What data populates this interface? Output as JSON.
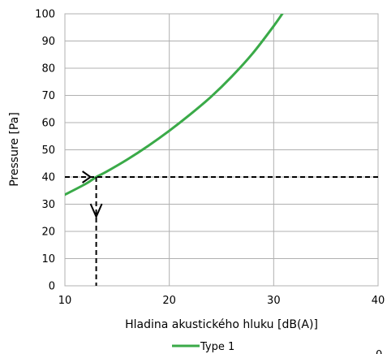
{
  "chart_data": {
    "type": "line",
    "xlabel": "Hladina akustického hluku [dB(A)]",
    "ylabel": "Pressure [Pa]",
    "xlim": [
      10,
      40
    ],
    "ylim": [
      0,
      100
    ],
    "x_ticks": [
      10,
      20,
      30,
      40
    ],
    "y_ticks": [
      0,
      10,
      20,
      30,
      40,
      50,
      60,
      70,
      80,
      90,
      100
    ],
    "x_tick_labels": [
      "10",
      "20",
      "30",
      "40"
    ],
    "y_tick_labels": [
      "0",
      "10",
      "20",
      "30",
      "40",
      "50",
      "60",
      "70",
      "80",
      "90",
      "100"
    ],
    "grid": true,
    "legend_position": "bottom",
    "series": [
      {
        "name": "Type 1",
        "color": "#3aaa48",
        "points": [
          [
            10,
            33.5
          ],
          [
            12,
            37.5
          ],
          [
            13,
            40
          ],
          [
            14,
            42
          ],
          [
            16,
            46.5
          ],
          [
            18,
            51.5
          ],
          [
            20,
            57
          ],
          [
            22,
            63
          ],
          [
            24,
            69.5
          ],
          [
            26,
            77
          ],
          [
            28,
            85.5
          ],
          [
            30,
            95.5
          ],
          [
            31,
            101
          ]
        ]
      }
    ],
    "annotation": {
      "type": "dashed-guide",
      "x": 13,
      "y": 40,
      "color": "#000000"
    },
    "corner_mark": "0"
  }
}
